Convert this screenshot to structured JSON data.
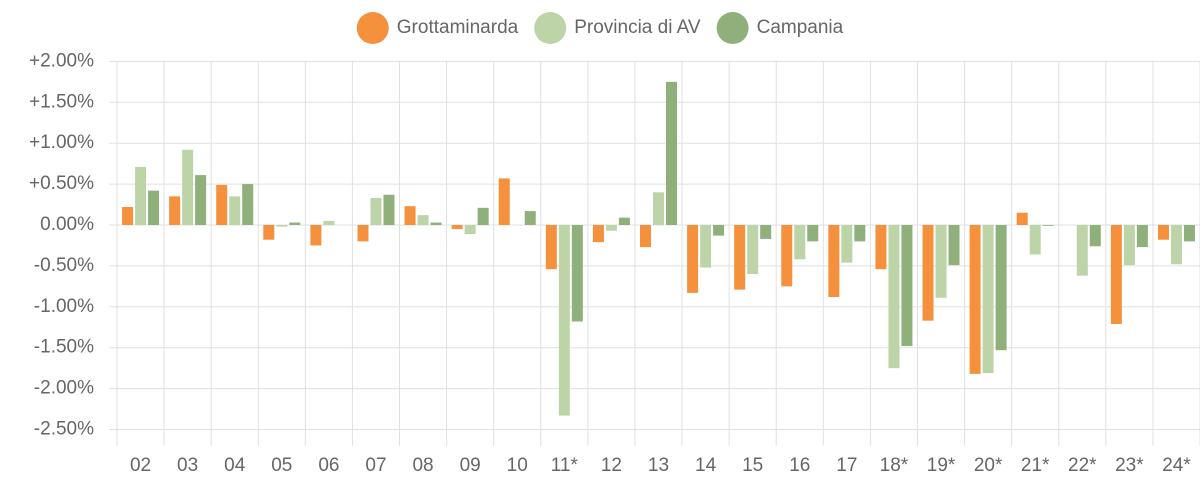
{
  "chart_data": {
    "type": "bar",
    "categories": [
      "02",
      "03",
      "04",
      "05",
      "06",
      "07",
      "08",
      "09",
      "10",
      "11*",
      "12",
      "13",
      "14",
      "15",
      "16",
      "17",
      "18*",
      "19*",
      "20*",
      "21*",
      "22*",
      "23*",
      "24*"
    ],
    "series": [
      {
        "name": "Grottaminarda",
        "color": "#f5913d",
        "values": [
          0.22,
          0.35,
          0.49,
          -0.18,
          -0.25,
          -0.2,
          0.23,
          -0.05,
          0.57,
          -0.54,
          -0.21,
          -0.27,
          -0.83,
          -0.79,
          -0.75,
          -0.88,
          -0.54,
          -1.17,
          -1.82,
          0.15,
          0,
          -1.21,
          -0.18
        ]
      },
      {
        "name": "Provincia di AV",
        "color": "#bdd4a9",
        "values": [
          0.71,
          0.92,
          0.35,
          -0.02,
          0.05,
          0.33,
          0.12,
          -0.11,
          0,
          -2.33,
          -0.07,
          0.4,
          -0.52,
          -0.6,
          -0.42,
          -0.46,
          -1.75,
          -0.89,
          -1.81,
          -0.36,
          -0.62,
          -0.49,
          -0.48
        ]
      },
      {
        "name": "Campania",
        "color": "#8fb07a",
        "values": [
          0.42,
          0.61,
          0.5,
          0.03,
          0,
          0.37,
          0.03,
          0.21,
          0.17,
          -1.18,
          0.09,
          1.75,
          -0.13,
          -0.17,
          -0.2,
          -0.2,
          -1.48,
          -0.49,
          -1.53,
          -0.01,
          -0.26,
          -0.27,
          -0.2
        ]
      }
    ],
    "ylim": [
      -2.6,
      2.0
    ],
    "yticks": [
      {
        "value": 2,
        "label": "+2.00%"
      },
      {
        "value": 1.5,
        "label": "+1.50%"
      },
      {
        "value": 1,
        "label": "+1.00%"
      },
      {
        "value": 0.5,
        "label": "+0.50%"
      },
      {
        "value": 0,
        "label": "0.00%"
      },
      {
        "value": -0.5,
        "label": "-0.50%"
      },
      {
        "value": -1,
        "label": "-1.00%"
      },
      {
        "value": -1.5,
        "label": "-1.50%"
      },
      {
        "value": -2,
        "label": "-2.00%"
      },
      {
        "value": -2.5,
        "label": "-2.50%"
      }
    ],
    "grid": true,
    "legend": "top"
  }
}
